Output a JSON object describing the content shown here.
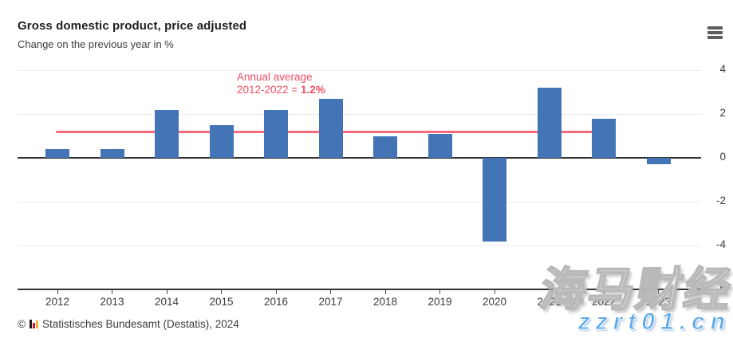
{
  "header": {
    "title": "Gross domestic product, price adjusted",
    "subtitle": "Change on the previous year in %",
    "menu_icon": "hamburger-icon"
  },
  "chart_data": {
    "type": "bar",
    "title": "Gross domestic product, price adjusted",
    "subtitle": "Change on the previous year in %",
    "categories": [
      "2012",
      "2013",
      "2014",
      "2015",
      "2016",
      "2017",
      "2018",
      "2019",
      "2020",
      "2021",
      "2022",
      "2023"
    ],
    "values": [
      0.4,
      0.4,
      2.2,
      1.5,
      2.2,
      2.7,
      1.0,
      1.1,
      -3.8,
      3.2,
      1.8,
      -0.3
    ],
    "unit": "%",
    "ylim": [
      -6,
      4
    ],
    "y_ticks": [
      4,
      2,
      0,
      -2,
      -4,
      -6
    ],
    "grid": "horizontal",
    "legend": "none",
    "bar_color": "#4274b6",
    "axis_color": "#333333",
    "grid_color": "#ececec",
    "reference_line": {
      "value": 1.2,
      "span_years": "2012-2022",
      "color": "#f8697a",
      "label_line1": "Annual average",
      "label_line2_prefix": "2012-2022 = ",
      "label_line2_value": "1.2%",
      "label_color": "#ef4f63"
    }
  },
  "footer": {
    "copyright": "©",
    "logo_icon": "destatis-bars-icon",
    "source": "Statistisches Bundesamt (Destatis), 2024"
  },
  "watermark": {
    "cjk": "海马财经",
    "url": "zzrt01.cn"
  }
}
